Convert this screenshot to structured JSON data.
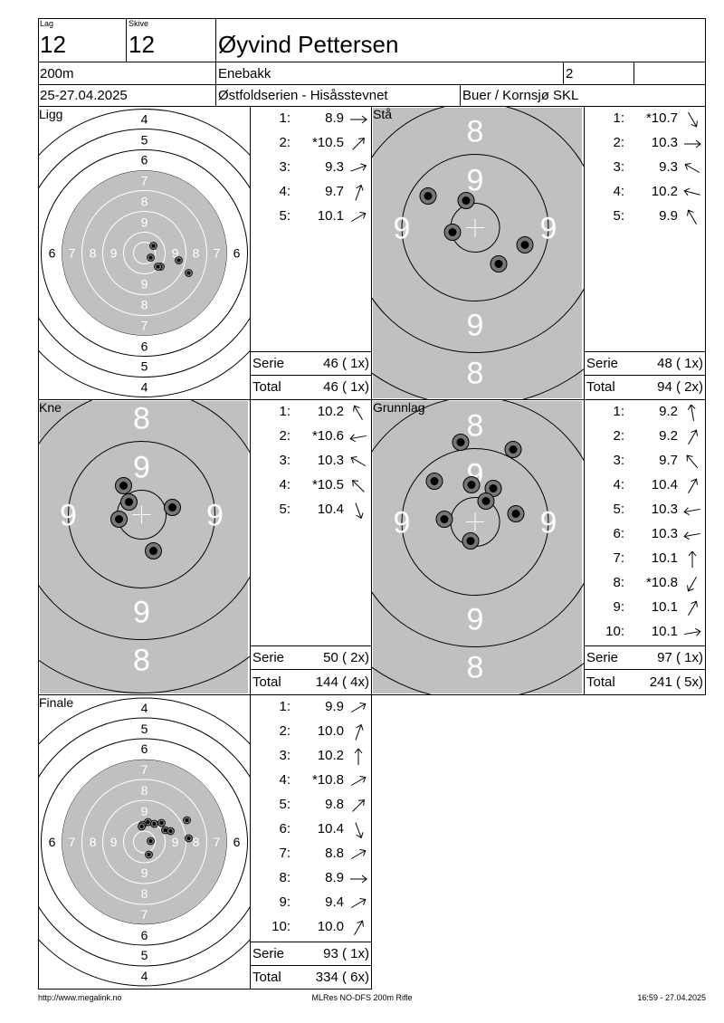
{
  "header": {
    "lag_label": "Lag",
    "lag": "12",
    "skive_label": "Skive",
    "skive": "12",
    "name": "Øyvind Pettersen",
    "distance": "200m",
    "club": "Enebakk",
    "class": "2",
    "date": "25-27.04.2025",
    "event": "Østfoldserien - Hisåsstevnet",
    "place": "Buer / Kornsjø SKL"
  },
  "sections": [
    {
      "label": "Ligg",
      "target": "small",
      "shots": [
        {
          "n": "1:",
          "v": "8.9",
          "dir": 0
        },
        {
          "n": "2:",
          "v": "*10.5",
          "dir": -45
        },
        {
          "n": "3:",
          "v": "9.3",
          "dir": -20
        },
        {
          "n": "4:",
          "v": "9.7",
          "dir": -70
        },
        {
          "n": "5:",
          "v": "10.1",
          "dir": -30
        }
      ],
      "serie_label": "Serie",
      "serie": "46 ( 1x)",
      "total_label": "Total",
      "total": "46 ( 1x)"
    },
    {
      "label": "Stå",
      "target": "large",
      "shots": [
        {
          "n": "1:",
          "v": "*10.7",
          "dir": 60
        },
        {
          "n": "2:",
          "v": "10.3",
          "dir": 0
        },
        {
          "n": "3:",
          "v": "9.3",
          "dir": -150
        },
        {
          "n": "4:",
          "v": "10.2",
          "dir": -165
        },
        {
          "n": "5:",
          "v": "9.9",
          "dir": -120
        }
      ],
      "serie_label": "Serie",
      "serie": "48 ( 1x)",
      "total_label": "Total",
      "total": "94 ( 2x)"
    },
    {
      "label": "Kne",
      "target": "large",
      "shots": [
        {
          "n": "1:",
          "v": "10.2",
          "dir": -120
        },
        {
          "n": "2:",
          "v": "*10.6",
          "dir": 170
        },
        {
          "n": "3:",
          "v": "10.3",
          "dir": -150
        },
        {
          "n": "4:",
          "v": "*10.5",
          "dir": -135
        },
        {
          "n": "5:",
          "v": "10.4",
          "dir": 70
        }
      ],
      "serie_label": "Serie",
      "serie": "50 ( 2x)",
      "total_label": "Total",
      "total": "144 ( 4x)"
    },
    {
      "label": "Grunnlag",
      "target": "large",
      "shots": [
        {
          "n": "1:",
          "v": "9.2",
          "dir": -100
        },
        {
          "n": "2:",
          "v": "9.2",
          "dir": -60
        },
        {
          "n": "3:",
          "v": "9.7",
          "dir": -130
        },
        {
          "n": "4:",
          "v": "10.4",
          "dir": -60
        },
        {
          "n": "5:",
          "v": "10.3",
          "dir": 170
        },
        {
          "n": "6:",
          "v": "10.3",
          "dir": 170
        },
        {
          "n": "7:",
          "v": "10.1",
          "dir": -90
        },
        {
          "n": "8:",
          "v": "*10.8",
          "dir": 120
        },
        {
          "n": "9:",
          "v": "10.1",
          "dir": -60
        },
        {
          "n": "10:",
          "v": "10.1",
          "dir": -10
        }
      ],
      "serie_label": "Serie",
      "serie": "97 ( 1x)",
      "total_label": "Total",
      "total": "241 ( 5x)"
    },
    {
      "label": "Finale",
      "target": "small",
      "shots": [
        {
          "n": "1:",
          "v": "9.9",
          "dir": -30
        },
        {
          "n": "2:",
          "v": "10.0",
          "dir": -70
        },
        {
          "n": "3:",
          "v": "10.2",
          "dir": -90
        },
        {
          "n": "4:",
          "v": "*10.8",
          "dir": -30
        },
        {
          "n": "5:",
          "v": "9.8",
          "dir": -45
        },
        {
          "n": "6:",
          "v": "10.4",
          "dir": 70
        },
        {
          "n": "7:",
          "v": "8.8",
          "dir": -30
        },
        {
          "n": "8:",
          "v": "8.9",
          "dir": 0
        },
        {
          "n": "9:",
          "v": "9.4",
          "dir": -30
        },
        {
          "n": "10:",
          "v": "10.0",
          "dir": -60
        }
      ],
      "serie_label": "Serie",
      "serie": "93 ( 1x)",
      "total_label": "Total",
      "total": "334 ( 6x)"
    }
  ],
  "small_target_labels": {
    "rings": [
      "4",
      "5",
      "6",
      "7",
      "8",
      "9"
    ],
    "side": [
      "6",
      "7",
      "8",
      "9"
    ]
  },
  "large_target_labels": {
    "rings": [
      "8",
      "9"
    ]
  },
  "footer": {
    "url": "http://www.megalink.no",
    "program": "MLRes NO-DFS 200m Rifle",
    "timestamp": "16:59 - 27.04.2025"
  }
}
